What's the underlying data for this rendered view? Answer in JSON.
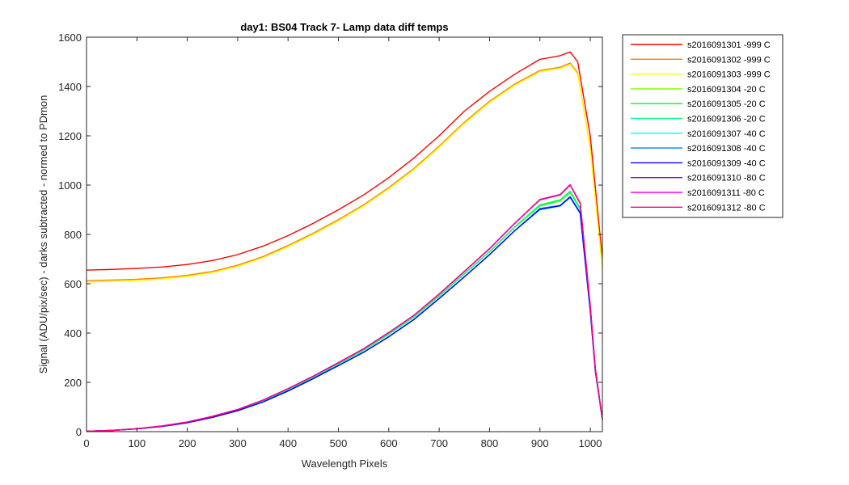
{
  "chart_data": {
    "type": "line",
    "title": "day1: BS04  Track 7- Lamp data diff temps",
    "xlabel": "Wavelength Pixels",
    "ylabel": "Signal (ADU/pix/sec) - darks subtracted - normed to PDmon",
    "xlim": [
      0,
      1024
    ],
    "ylim": [
      0,
      1600
    ],
    "xticks": [
      0,
      100,
      200,
      300,
      400,
      500,
      600,
      700,
      800,
      900,
      1000
    ],
    "yticks": [
      0,
      200,
      400,
      600,
      800,
      1000,
      1200,
      1400,
      1600
    ],
    "grid": false,
    "legend_position": "outside-top-right",
    "series": [
      {
        "name": "s2016091301 -999 C",
        "color": "#ff0000",
        "x": [
          0,
          50,
          100,
          150,
          200,
          250,
          300,
          350,
          400,
          450,
          500,
          550,
          600,
          650,
          700,
          750,
          800,
          850,
          900,
          940,
          960,
          975,
          1000,
          1024
        ],
        "y": [
          655,
          658,
          662,
          668,
          678,
          694,
          718,
          752,
          795,
          845,
          900,
          960,
          1030,
          1110,
          1200,
          1300,
          1380,
          1450,
          1510,
          1525,
          1540,
          1500,
          1200,
          700
        ]
      },
      {
        "name": "s2016091302 -999 C",
        "color": "#ff8000",
        "x": [
          0,
          50,
          100,
          150,
          200,
          250,
          300,
          350,
          400,
          450,
          500,
          550,
          600,
          650,
          700,
          750,
          800,
          850,
          900,
          940,
          960,
          975,
          1000,
          1024
        ],
        "y": [
          612,
          615,
          618,
          624,
          634,
          650,
          675,
          710,
          755,
          805,
          860,
          920,
          990,
          1068,
          1158,
          1255,
          1340,
          1410,
          1465,
          1478,
          1495,
          1455,
          1150,
          665
        ]
      },
      {
        "name": "s2016091303 -999 C",
        "color": "#ffff00",
        "x": [
          0,
          50,
          100,
          150,
          200,
          250,
          300,
          350,
          400,
          450,
          500,
          550,
          600,
          650,
          700,
          750,
          800,
          850,
          900,
          940,
          960,
          975,
          1000,
          1024
        ],
        "y": [
          607,
          610,
          613,
          619,
          629,
          645,
          670,
          705,
          750,
          800,
          855,
          915,
          985,
          1063,
          1153,
          1250,
          1335,
          1405,
          1460,
          1473,
          1490,
          1450,
          1145,
          660
        ]
      },
      {
        "name": "s2016091304 -20 C",
        "color": "#80ff00",
        "x": [
          0,
          50,
          100,
          150,
          200,
          250,
          300,
          350,
          400,
          450,
          500,
          550,
          600,
          650,
          700,
          750,
          800,
          850,
          900,
          940,
          960,
          980,
          1000,
          1010,
          1024
        ],
        "y": [
          2,
          5,
          12,
          22,
          38,
          60,
          88,
          125,
          170,
          220,
          275,
          330,
          395,
          465,
          550,
          640,
          730,
          830,
          915,
          935,
          970,
          900,
          500,
          250,
          50
        ]
      },
      {
        "name": "s2016091305 -20 C",
        "color": "#00ff00",
        "x": [
          0,
          50,
          100,
          150,
          200,
          250,
          300,
          350,
          400,
          450,
          500,
          550,
          600,
          650,
          700,
          750,
          800,
          850,
          900,
          940,
          960,
          980,
          1000,
          1010,
          1024
        ],
        "y": [
          2,
          5,
          12,
          22,
          38,
          60,
          88,
          125,
          170,
          220,
          275,
          330,
          395,
          465,
          550,
          640,
          730,
          830,
          920,
          940,
          975,
          905,
          500,
          250,
          50
        ]
      },
      {
        "name": "s2016091306 -20 C",
        "color": "#00ff80",
        "x": [
          0,
          50,
          100,
          150,
          200,
          250,
          300,
          350,
          400,
          450,
          500,
          550,
          600,
          650,
          700,
          750,
          800,
          850,
          900,
          940,
          960,
          980,
          1000,
          1010,
          1024
        ],
        "y": [
          2,
          5,
          12,
          22,
          38,
          60,
          88,
          125,
          170,
          220,
          275,
          330,
          395,
          465,
          550,
          640,
          730,
          830,
          917,
          938,
          972,
          902,
          500,
          250,
          50
        ]
      },
      {
        "name": "s2016091307 -40 C",
        "color": "#00ffff",
        "x": [
          0,
          50,
          100,
          150,
          200,
          250,
          300,
          350,
          400,
          450,
          500,
          550,
          600,
          650,
          700,
          750,
          800,
          850,
          900,
          940,
          960,
          980,
          1000,
          1010,
          1024
        ],
        "y": [
          2,
          5,
          11,
          21,
          36,
          58,
          85,
          120,
          165,
          215,
          268,
          322,
          385,
          455,
          540,
          628,
          718,
          815,
          900,
          915,
          950,
          885,
          490,
          245,
          50
        ]
      },
      {
        "name": "s2016091308 -40 C",
        "color": "#0080ff",
        "x": [
          0,
          50,
          100,
          150,
          200,
          250,
          300,
          350,
          400,
          450,
          500,
          550,
          600,
          650,
          700,
          750,
          800,
          850,
          900,
          940,
          960,
          980,
          1000,
          1010,
          1024
        ],
        "y": [
          2,
          5,
          11,
          21,
          36,
          58,
          85,
          120,
          165,
          215,
          268,
          322,
          385,
          455,
          540,
          628,
          718,
          815,
          905,
          918,
          953,
          888,
          490,
          245,
          50
        ]
      },
      {
        "name": "s2016091309 -40 C",
        "color": "#0000ff",
        "x": [
          0,
          50,
          100,
          150,
          200,
          250,
          300,
          350,
          400,
          450,
          500,
          550,
          600,
          650,
          700,
          750,
          800,
          850,
          900,
          940,
          960,
          980,
          1000,
          1010,
          1024
        ],
        "y": [
          2,
          5,
          11,
          21,
          36,
          58,
          85,
          120,
          165,
          215,
          268,
          322,
          385,
          455,
          540,
          628,
          718,
          815,
          902,
          916,
          951,
          886,
          490,
          245,
          50
        ]
      },
      {
        "name": "s2016091310 -80 C",
        "color": "#8000ff",
        "x": [
          0,
          50,
          100,
          150,
          200,
          250,
          300,
          350,
          400,
          450,
          500,
          550,
          600,
          650,
          700,
          750,
          800,
          850,
          900,
          940,
          960,
          980,
          1000,
          1010,
          1024
        ],
        "y": [
          2,
          5,
          12,
          23,
          39,
          62,
          90,
          128,
          174,
          225,
          280,
          336,
          402,
          472,
          558,
          650,
          742,
          845,
          940,
          960,
          1000,
          925,
          510,
          255,
          50
        ]
      },
      {
        "name": "s2016091311 -80 C",
        "color": "#ff00ff",
        "x": [
          0,
          50,
          100,
          150,
          200,
          250,
          300,
          350,
          400,
          450,
          500,
          550,
          600,
          650,
          700,
          750,
          800,
          850,
          900,
          940,
          960,
          980,
          1000,
          1010,
          1024
        ],
        "y": [
          2,
          5,
          12,
          23,
          39,
          62,
          90,
          128,
          174,
          225,
          280,
          336,
          402,
          472,
          558,
          650,
          742,
          845,
          942,
          962,
          1002,
          927,
          510,
          255,
          50
        ]
      },
      {
        "name": "s2016091312 -80 C",
        "color": "#ff0080",
        "x": [
          0,
          50,
          100,
          150,
          200,
          250,
          300,
          350,
          400,
          450,
          500,
          550,
          600,
          650,
          700,
          750,
          800,
          850,
          900,
          940,
          960,
          980,
          1000,
          1010,
          1024
        ],
        "y": [
          2,
          5,
          12,
          23,
          39,
          62,
          90,
          128,
          174,
          225,
          280,
          336,
          402,
          472,
          558,
          650,
          742,
          845,
          941,
          961,
          1001,
          926,
          510,
          255,
          50
        ]
      }
    ]
  }
}
